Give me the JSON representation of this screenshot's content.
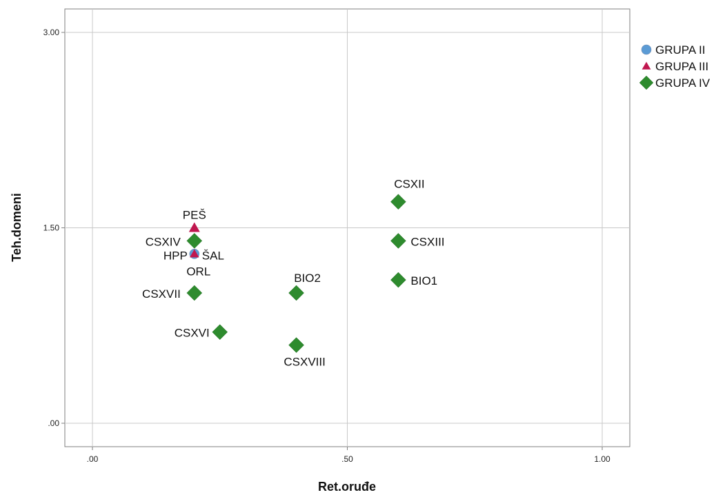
{
  "chart_data": {
    "type": "scatter",
    "xlabel": "Ret.oruđe",
    "ylabel": "Teh.domeni",
    "xlim": [
      -0.05,
      1.05
    ],
    "ylim": [
      -0.15,
      3.15
    ],
    "x_ticks": [
      0,
      0.5,
      1
    ],
    "x_tick_labels": [
      ".00",
      ".50",
      "1.00"
    ],
    "y_ticks": [
      0,
      1.5,
      3
    ],
    "y_tick_labels": [
      ".00",
      "1.50",
      "3.00"
    ],
    "grid": true,
    "legend": "top-right",
    "series": [
      {
        "name": "GRUPA II",
        "marker": "circle",
        "color": "#5b9bd5",
        "points": [
          {
            "x": 0.2,
            "y": 1.3,
            "label": ""
          }
        ]
      },
      {
        "name": "GRUPA III",
        "marker": "triangle",
        "color": "#c0174f",
        "points": [
          {
            "x": 0.2,
            "y": 1.5,
            "label": "PEŠ"
          },
          {
            "x": 0.2,
            "y": 1.3,
            "label": ""
          }
        ]
      },
      {
        "name": "GRUPA IV",
        "marker": "diamond",
        "color": "#2e8b2e",
        "points": [
          {
            "x": 0.2,
            "y": 1.4,
            "label": "CSXIV"
          },
          {
            "x": 0.2,
            "y": 1.0,
            "label": "CSXVII"
          },
          {
            "x": 0.25,
            "y": 0.7,
            "label": "CSXVI"
          },
          {
            "x": 0.4,
            "y": 1.0,
            "label": "BIO2"
          },
          {
            "x": 0.4,
            "y": 0.6,
            "label": "CSXVIII"
          },
          {
            "x": 0.6,
            "y": 1.7,
            "label": "CSXII"
          },
          {
            "x": 0.6,
            "y": 1.4,
            "label": "CSXIII"
          },
          {
            "x": 0.6,
            "y": 1.1,
            "label": "BIO1"
          }
        ]
      }
    ],
    "annotations": [
      "HPP",
      "ŠAL",
      "ORL"
    ]
  }
}
